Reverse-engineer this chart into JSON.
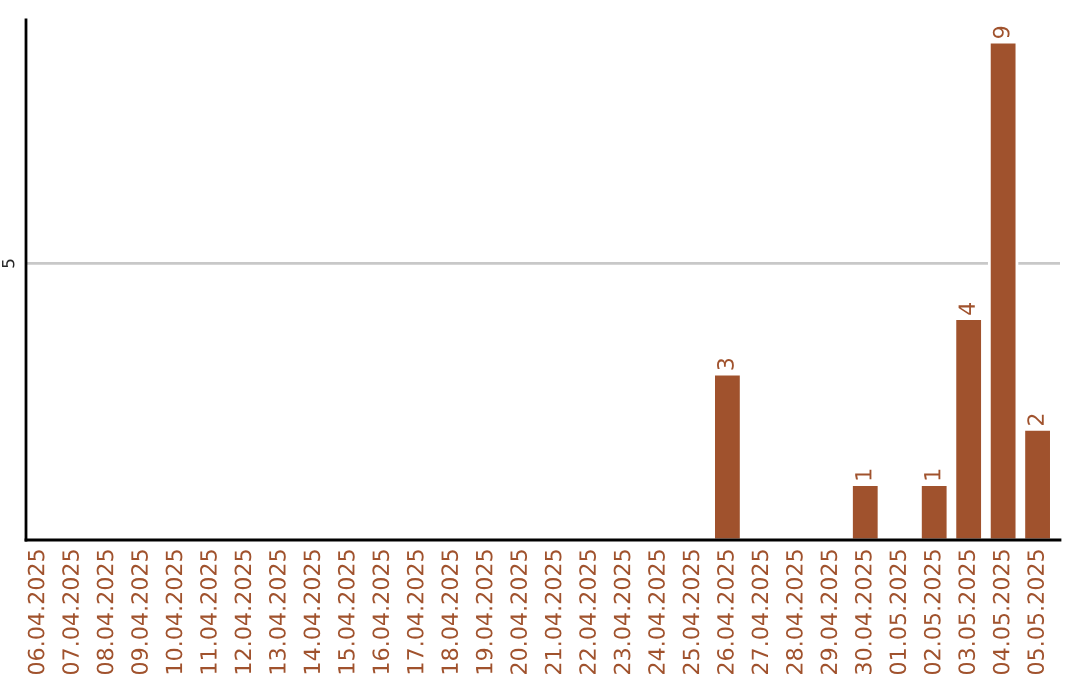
{
  "chart_data": {
    "type": "bar",
    "categories": [
      "06.04.2025",
      "07.04.2025",
      "08.04.2025",
      "09.04.2025",
      "10.04.2025",
      "11.04.2025",
      "12.04.2025",
      "13.04.2025",
      "14.04.2025",
      "15.04.2025",
      "16.04.2025",
      "17.04.2025",
      "18.04.2025",
      "19.04.2025",
      "20.04.2025",
      "21.04.2025",
      "22.04.2025",
      "23.04.2025",
      "24.04.2025",
      "25.04.2025",
      "26.04.2025",
      "27.04.2025",
      "28.04.2025",
      "29.04.2025",
      "30.04.2025",
      "01.05.2025",
      "02.05.2025",
      "03.05.2025",
      "04.05.2025",
      "05.05.2025"
    ],
    "values": [
      null,
      null,
      null,
      null,
      null,
      null,
      null,
      null,
      null,
      null,
      null,
      null,
      null,
      null,
      null,
      null,
      null,
      null,
      null,
      null,
      3,
      null,
      null,
      null,
      1,
      null,
      1,
      4,
      9,
      2
    ],
    "data_labels": true,
    "color": "#a0522d",
    "ylim": [
      0,
      9.4
    ],
    "yticks": [
      5
    ],
    "grid": "y",
    "legend": false
  }
}
